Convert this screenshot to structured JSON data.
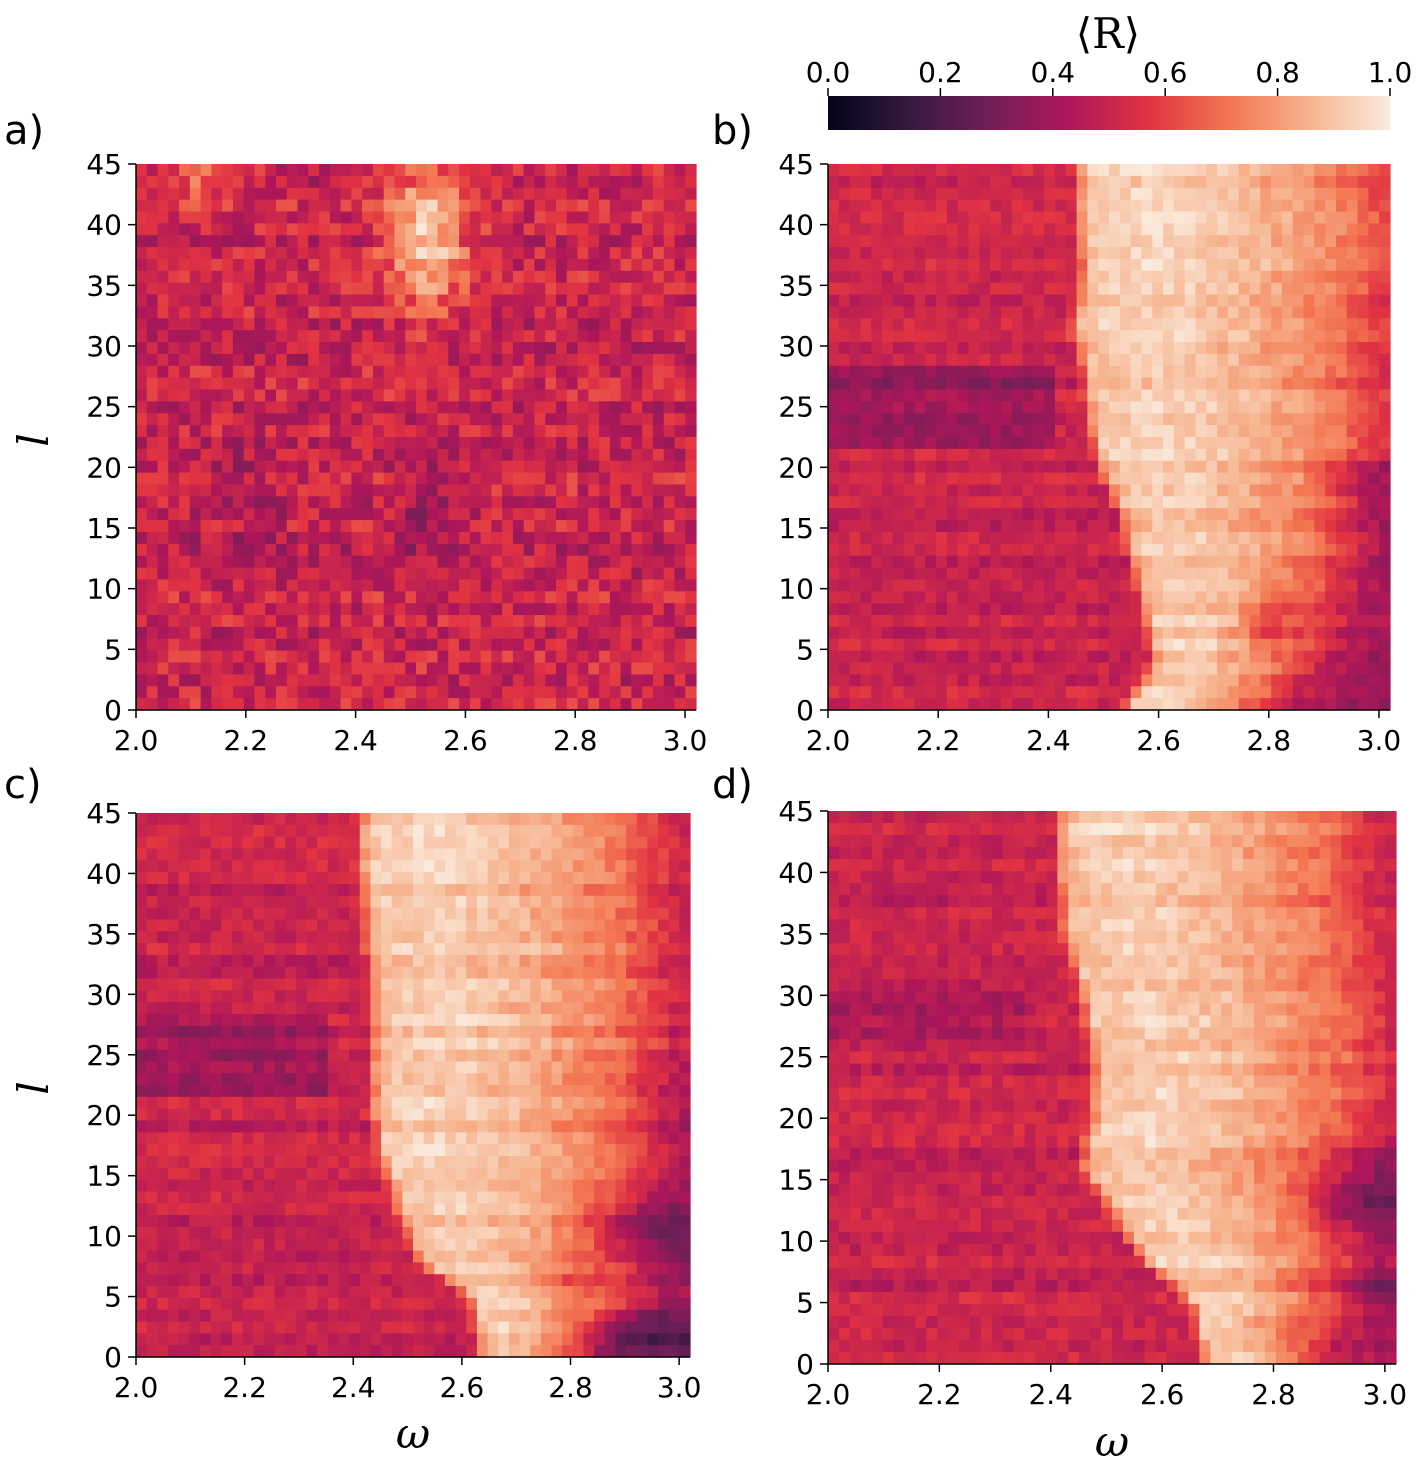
{
  "chart_data": {
    "type": "heatmap",
    "colorbar": {
      "label": "⟨R⟩",
      "min": 0.0,
      "max": 1.0,
      "ticks": [
        "0.0",
        "0.2",
        "0.4",
        "0.6",
        "0.8",
        "1.0"
      ],
      "colormap": "rocket",
      "stops": [
        "#03051a",
        "#35193e",
        "#701f57",
        "#ad1759",
        "#e13342",
        "#f37651",
        "#f6b48f",
        "#faebdd"
      ],
      "placement": "top-right"
    },
    "x_range": [
      2.0,
      3.02
    ],
    "y_range": [
      0,
      45
    ],
    "x_ticks": [
      "2.0",
      "2.2",
      "2.4",
      "2.6",
      "2.8",
      "3.0"
    ],
    "y_ticks": [
      "0",
      "5",
      "10",
      "15",
      "20",
      "25",
      "30",
      "35",
      "40",
      "45"
    ],
    "x_cells": 52,
    "y_cells": 46,
    "panels": [
      {
        "label": "a)",
        "xlabel": "",
        "ylabel": "l",
        "base": 0.5,
        "edge": 0.0,
        "noise": 0.11,
        "bright_blobs": [
          {
            "x": 2.53,
            "y": 39,
            "rx": 0.07,
            "ry": 6,
            "value": 0.4
          },
          {
            "x": 2.12,
            "y": 44,
            "rx": 0.06,
            "ry": 2,
            "value": 0.2
          }
        ],
        "dark_blobs": [
          {
            "x": 2.53,
            "y": 16,
            "rx": 0.05,
            "ry": 4,
            "value": 0.12
          },
          {
            "x": 2.2,
            "y": 18,
            "rx": 0.08,
            "ry": 4,
            "value": 0.08
          }
        ],
        "dark_rows": []
      },
      {
        "label": "b)",
        "xlabel": "",
        "ylabel": "",
        "base": 0.5,
        "edge": [
          [
            0,
            2.52
          ],
          [
            4,
            2.58
          ],
          [
            8,
            2.56
          ],
          [
            12,
            2.54
          ],
          [
            16,
            2.52
          ],
          [
            20,
            2.48
          ],
          [
            24,
            2.46
          ],
          [
            28,
            2.45
          ],
          [
            32,
            2.43
          ],
          [
            36,
            2.45
          ],
          [
            40,
            2.44
          ],
          [
            45,
            2.44
          ]
        ],
        "band_width": [
          [
            0,
            0.18
          ],
          [
            10,
            0.26
          ],
          [
            16,
            0.3
          ],
          [
            22,
            0.38
          ],
          [
            30,
            0.4
          ],
          [
            40,
            0.42
          ],
          [
            45,
            0.4
          ]
        ],
        "noise": 0.05,
        "bright_blobs": [],
        "dark_blobs": [
          {
            "x": 2.8,
            "y": 7,
            "rx": 0.05,
            "ry": 2,
            "value": 0.22
          },
          {
            "x": 2.98,
            "y": 19,
            "rx": 0.08,
            "ry": 2,
            "value": 0.15
          }
        ],
        "dark_rows": [
          {
            "y": [
              22,
              28
            ],
            "x": [
              2.0,
              2.42
            ],
            "value": 0.12
          }
        ]
      },
      {
        "label": "c)",
        "xlabel": "ω",
        "ylabel": "l",
        "base": 0.5,
        "edge": [
          [
            0,
            2.62
          ],
          [
            5,
            2.6
          ],
          [
            8,
            2.5
          ],
          [
            12,
            2.47
          ],
          [
            16,
            2.44
          ],
          [
            20,
            2.42
          ],
          [
            25,
            2.42
          ],
          [
            30,
            2.42
          ],
          [
            35,
            2.41
          ],
          [
            40,
            2.4
          ],
          [
            45,
            2.4
          ]
        ],
        "band_width": [
          [
            0,
            0.14
          ],
          [
            8,
            0.28
          ],
          [
            15,
            0.34
          ],
          [
            25,
            0.38
          ],
          [
            35,
            0.4
          ],
          [
            45,
            0.4
          ]
        ],
        "noise": 0.05,
        "bright_blobs": [],
        "dark_blobs": [
          {
            "x": 2.93,
            "y": 2,
            "rx": 0.12,
            "ry": 2,
            "value": 0.22
          },
          {
            "x": 2.93,
            "y": 11,
            "rx": 0.1,
            "ry": 2.5,
            "value": 0.18
          },
          {
            "x": 2.8,
            "y": 6,
            "rx": 0.06,
            "ry": 1.5,
            "value": 0.14
          }
        ],
        "dark_rows": [
          {
            "y": [
              22,
              28
            ],
            "x": [
              2.0,
              2.36
            ],
            "value": 0.1
          }
        ]
      },
      {
        "label": "d)",
        "xlabel": "ω",
        "ylabel": "",
        "base": 0.5,
        "edge": [
          [
            0,
            2.66
          ],
          [
            5,
            2.64
          ],
          [
            8,
            2.56
          ],
          [
            12,
            2.5
          ],
          [
            16,
            2.44
          ],
          [
            20,
            2.46
          ],
          [
            25,
            2.46
          ],
          [
            30,
            2.44
          ],
          [
            35,
            2.41
          ],
          [
            40,
            2.4
          ],
          [
            45,
            2.4
          ]
        ],
        "band_width": [
          [
            0,
            0.14
          ],
          [
            8,
            0.26
          ],
          [
            14,
            0.32
          ],
          [
            25,
            0.38
          ],
          [
            35,
            0.4
          ],
          [
            45,
            0.4
          ]
        ],
        "noise": 0.05,
        "bright_blobs": [],
        "dark_blobs": [
          {
            "x": 2.95,
            "y": 13,
            "rx": 0.1,
            "ry": 2,
            "value": 0.2
          },
          {
            "x": 2.95,
            "y": 6,
            "rx": 0.12,
            "ry": 1.5,
            "value": 0.16
          },
          {
            "x": 2.82,
            "y": 3,
            "rx": 0.08,
            "ry": 1.5,
            "value": 0.1
          }
        ],
        "dark_rows": [
          {
            "y": [
              26,
              30
            ],
            "x": [
              2.0,
              2.36
            ],
            "value": 0.08
          }
        ]
      }
    ]
  }
}
